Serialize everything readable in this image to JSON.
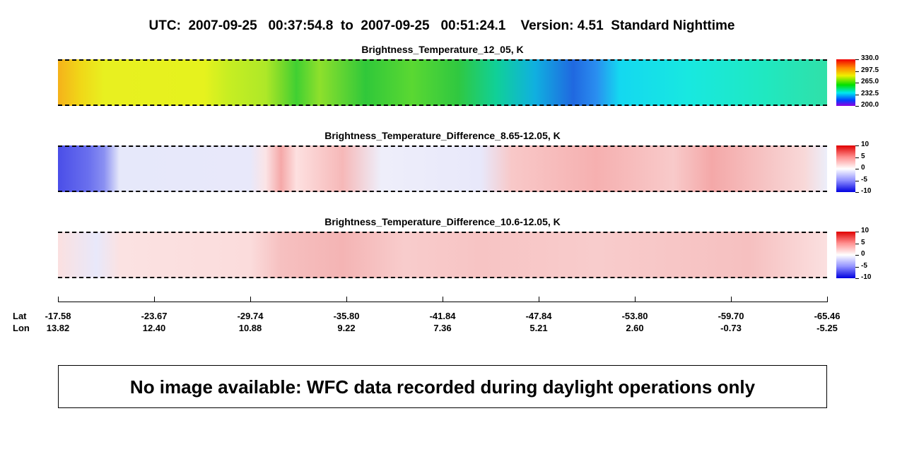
{
  "header": {
    "title": "UTC:  2007-09-25   00:37:54.8  to  2007-09-25   00:51:24.1    Version: 4.51  Standard Nighttime"
  },
  "panels": [
    {
      "title": "Brightness_Temperature_12_05, K",
      "colorbar_ticks": [
        "330.0",
        "297.5",
        "265.0",
        "232.5",
        "200.0"
      ]
    },
    {
      "title": "Brightness_Temperature_Difference_8.65-12.05, K",
      "colorbar_ticks": [
        "10",
        "5",
        "0",
        "-5",
        "-10"
      ]
    },
    {
      "title": "Brightness_Temperature_Difference_10.6-12.05, K",
      "colorbar_ticks": [
        "10",
        "5",
        "0",
        "-5",
        "-10"
      ]
    }
  ],
  "axis": {
    "row_labels": [
      "Lat",
      "Lon"
    ],
    "lat": [
      "-17.58",
      "-23.67",
      "-29.74",
      "-35.80",
      "-41.84",
      "-47.84",
      "-53.80",
      "-59.70",
      "-65.46"
    ],
    "lon": [
      "13.82",
      "12.40",
      "10.88",
      "9.22",
      "7.36",
      "5.21",
      "2.60",
      "-0.73",
      "-5.25"
    ]
  },
  "notice": "No image available: WFC data recorded during daylight operations only"
}
